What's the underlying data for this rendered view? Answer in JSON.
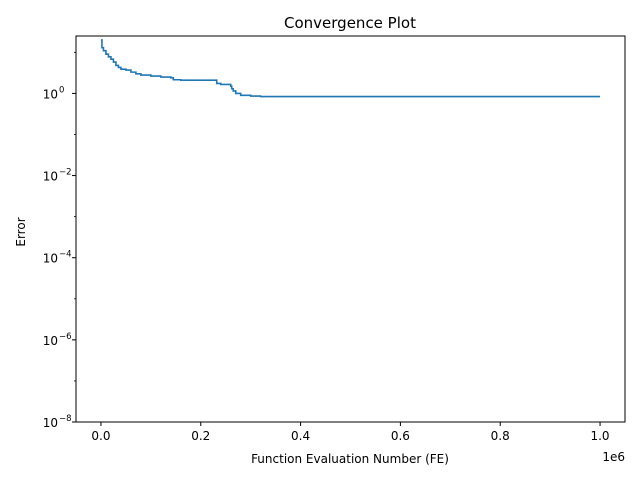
{
  "chart_data": {
    "type": "line",
    "title": "Convergence Plot",
    "xlabel": "Function Evaluation Number (FE)",
    "ylabel": "Error",
    "x_offset_label": "1e6",
    "y_scale": "log",
    "xlim": [
      -0.05,
      1.05
    ],
    "ylim": [
      1e-08,
      25
    ],
    "grid": false,
    "x_ticks": [
      {
        "value": 0.0,
        "label": "0.0"
      },
      {
        "value": 0.2,
        "label": "0.2"
      },
      {
        "value": 0.4,
        "label": "0.4"
      },
      {
        "value": 0.6,
        "label": "0.6"
      },
      {
        "value": 0.8,
        "label": "0.8"
      },
      {
        "value": 1.0,
        "label": "1.0"
      }
    ],
    "y_ticks": [
      {
        "value": 1,
        "label": "10",
        "exp": "0"
      },
      {
        "value": 0.01,
        "label": "10",
        "exp": "−2"
      },
      {
        "value": 0.0001,
        "label": "10",
        "exp": "−4"
      },
      {
        "value": 1e-06,
        "label": "10",
        "exp": "−6"
      },
      {
        "value": 1e-08,
        "label": "10",
        "exp": "−8"
      }
    ],
    "color": "#1f77b4",
    "series": [
      {
        "x": [
          0.0,
          0.002,
          0.005,
          0.01,
          0.015,
          0.02,
          0.025,
          0.03,
          0.035,
          0.04,
          0.05,
          0.06,
          0.07,
          0.08,
          0.1,
          0.12,
          0.14,
          0.145,
          0.16,
          0.2,
          0.23,
          0.232,
          0.24,
          0.26,
          0.262,
          0.265,
          0.27,
          0.28,
          0.3,
          0.32,
          0.5,
          0.8,
          1.0
        ],
        "y": [
          20,
          13,
          11,
          9,
          7.8,
          6.8,
          5.8,
          4.8,
          4.3,
          3.9,
          3.7,
          3.3,
          3.0,
          2.8,
          2.65,
          2.5,
          2.4,
          2.15,
          2.1,
          2.1,
          2.1,
          1.75,
          1.65,
          1.5,
          1.3,
          1.15,
          1.0,
          0.9,
          0.86,
          0.84,
          0.84,
          0.84,
          0.84
        ]
      }
    ]
  }
}
